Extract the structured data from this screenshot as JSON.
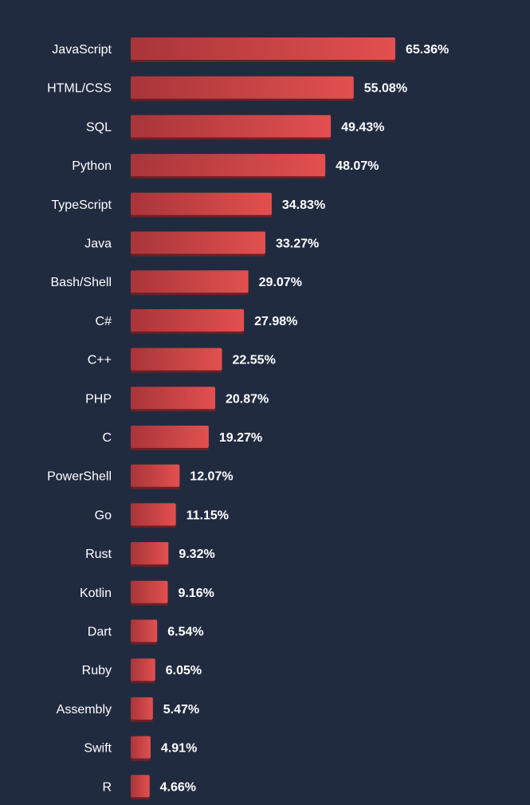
{
  "colors": {
    "background": "#212b40",
    "bar_start": "#a8353a",
    "bar_end": "#e2504f",
    "bar_shadow": "#6e1f24",
    "text": "#ffffff"
  },
  "chart_data": {
    "type": "bar",
    "orientation": "horizontal",
    "categories": [
      "JavaScript",
      "HTML/CSS",
      "SQL",
      "Python",
      "TypeScript",
      "Java",
      "Bash/Shell",
      "C#",
      "C++",
      "PHP",
      "C",
      "PowerShell",
      "Go",
      "Rust",
      "Kotlin",
      "Dart",
      "Ruby",
      "Assembly",
      "Swift",
      "R"
    ],
    "values": [
      65.36,
      55.08,
      49.43,
      48.07,
      34.83,
      33.27,
      29.07,
      27.98,
      22.55,
      20.87,
      19.27,
      12.07,
      11.15,
      9.32,
      9.16,
      6.54,
      6.05,
      5.47,
      4.91,
      4.66
    ],
    "value_labels": [
      "65.36%",
      "55.08%",
      "49.43%",
      "48.07%",
      "34.83%",
      "33.27%",
      "29.07%",
      "27.98%",
      "22.55%",
      "20.87%",
      "19.27%",
      "12.07%",
      "11.15%",
      "9.32%",
      "9.16%",
      "6.54%",
      "6.05%",
      "5.47%",
      "4.91%",
      "4.66%"
    ],
    "title": "",
    "xlabel": "",
    "ylabel": "",
    "xlim": [
      0,
      65.36
    ],
    "grid": false,
    "legend": "none"
  }
}
